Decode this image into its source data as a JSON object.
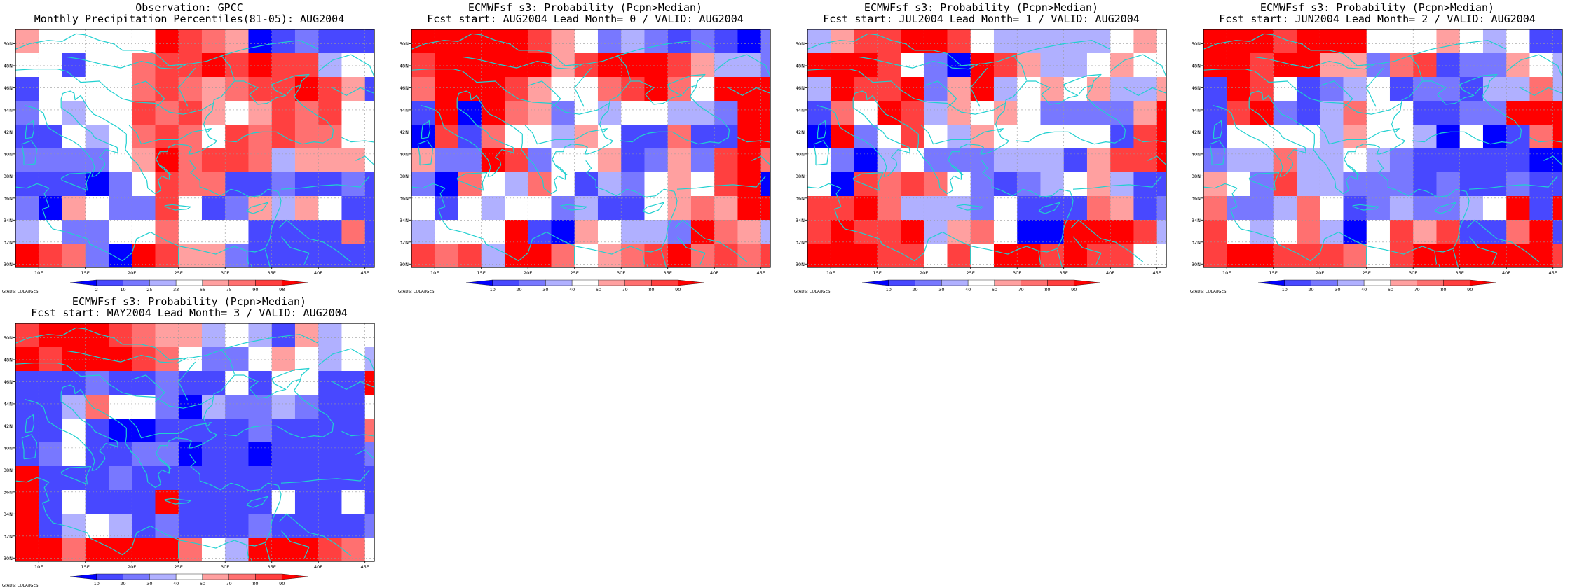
{
  "panels": [
    {
      "id": "obs",
      "title_line1": "Observation: GPCC",
      "title_line2": "Monthly Precipitation Percentiles(81-05): AUG2004",
      "colorbar": {
        "labels": [
          "2",
          "10",
          "25",
          "33",
          "66",
          "75",
          "90",
          "98"
        ],
        "colors": [
          "#0000ff",
          "#4848ff",
          "#7878ff",
          "#b0b0ff",
          "#ffffff",
          "#ffa0a0",
          "#ff7070",
          "#ff4040",
          "#ff0000"
        ]
      },
      "credit": "GrADS: COLA/IGES"
    },
    {
      "id": "lead0",
      "title_line1": "ECMWFsf s3: Probability (Pcpn>Median)",
      "title_line2": "Fcst start: AUG2004  Lead Month= 0 / VALID: AUG2004",
      "colorbar": {
        "labels": [
          "10",
          "20",
          "30",
          "40",
          "60",
          "70",
          "80",
          "90"
        ],
        "colors": [
          "#0000ff",
          "#4848ff",
          "#7878ff",
          "#b0b0ff",
          "#ffffff",
          "#ffa0a0",
          "#ff7070",
          "#ff4040",
          "#ff0000"
        ]
      },
      "credit": "GrADS: COLA/IGES"
    },
    {
      "id": "lead1",
      "title_line1": "ECMWFsf s3: Probability (Pcpn>Median)",
      "title_line2": "Fcst start: JUL2004  Lead Month= 1 / VALID: AUG2004",
      "colorbar": {
        "labels": [
          "10",
          "20",
          "30",
          "40",
          "60",
          "70",
          "80",
          "90"
        ],
        "colors": [
          "#0000ff",
          "#4848ff",
          "#7878ff",
          "#b0b0ff",
          "#ffffff",
          "#ffa0a0",
          "#ff7070",
          "#ff4040",
          "#ff0000"
        ]
      },
      "credit": "GrADS: COLA/IGES"
    },
    {
      "id": "lead2",
      "title_line1": "ECMWFsf s3: Probability (Pcpn>Median)",
      "title_line2": "Fcst start: JUN2004  Lead Month= 2 / VALID: AUG2004",
      "colorbar": {
        "labels": [
          "10",
          "20",
          "30",
          "40",
          "60",
          "70",
          "80",
          "90"
        ],
        "colors": [
          "#0000ff",
          "#4848ff",
          "#7878ff",
          "#b0b0ff",
          "#ffffff",
          "#ffa0a0",
          "#ff7070",
          "#ff4040",
          "#ff0000"
        ]
      },
      "credit": "GrADS: COLA/IGES"
    },
    {
      "id": "lead3",
      "title_line1": "ECMWFsf s3: Probability (Pcpn>Median)",
      "title_line2": "Fcst start: MAY2004  Lead Month= 3 / VALID: AUG2004",
      "colorbar": {
        "labels": [
          "10",
          "20",
          "30",
          "40",
          "60",
          "70",
          "80",
          "90"
        ],
        "colors": [
          "#0000ff",
          "#4848ff",
          "#7878ff",
          "#b0b0ff",
          "#ffffff",
          "#ffa0a0",
          "#ff7070",
          "#ff4040",
          "#ff0000"
        ]
      },
      "credit": "GrADS: COLA/IGES"
    }
  ],
  "map": {
    "lon_labels": [
      "10E",
      "15E",
      "20E",
      "25E",
      "30E",
      "35E",
      "40E",
      "45E"
    ],
    "lat_labels": [
      "30N",
      "32N",
      "34N",
      "36N",
      "38N",
      "40N",
      "42N",
      "44N",
      "46N",
      "48N",
      "50N"
    ],
    "lon_range": [
      7.5,
      46
    ],
    "lat_range": [
      29.7,
      51.3
    ],
    "coastline_color": "#20d0d0",
    "grid_cell_deg": 2.5
  },
  "chart_data": [
    {
      "type": "heatmap",
      "panel": "obs",
      "note": "rows from north (51N) to south (30N); each cell 2.5deg; value = color class index 0..8",
      "cells": [
        [
          5,
          4,
          4,
          4,
          4,
          4,
          8,
          7,
          6,
          5,
          0,
          1,
          2,
          1,
          1,
          1
        ],
        [
          4,
          4,
          1,
          4,
          4,
          6,
          7,
          7,
          8,
          7,
          8,
          7,
          7,
          3,
          4,
          4
        ],
        [
          1,
          4,
          4,
          4,
          4,
          6,
          7,
          6,
          5,
          6,
          7,
          7,
          8,
          7,
          5,
          1
        ],
        [
          2,
          4,
          3,
          4,
          4,
          7,
          6,
          7,
          5,
          4,
          5,
          7,
          6,
          7,
          4,
          4
        ],
        [
          1,
          1,
          4,
          3,
          4,
          6,
          7,
          6,
          4,
          7,
          6,
          7,
          6,
          6,
          4,
          4
        ],
        [
          2,
          2,
          2,
          2,
          4,
          5,
          8,
          6,
          7,
          7,
          6,
          3,
          5,
          5,
          5,
          4
        ],
        [
          1,
          1,
          1,
          0,
          2,
          4,
          7,
          6,
          6,
          1,
          1,
          2,
          1,
          1,
          2,
          1
        ],
        [
          2,
          0,
          5,
          4,
          2,
          2,
          7,
          4,
          1,
          2,
          5,
          3,
          5,
          4,
          1,
          1
        ],
        [
          3,
          4,
          2,
          2,
          4,
          4,
          6,
          4,
          4,
          4,
          1,
          1,
          1,
          1,
          6,
          1
        ],
        [
          8,
          7,
          6,
          2,
          0,
          8,
          7,
          5,
          5,
          2,
          1,
          1,
          1,
          1,
          1,
          1
        ]
      ]
    },
    {
      "type": "heatmap",
      "panel": "lead0",
      "cells": [
        [
          8,
          8,
          8,
          8,
          8,
          7,
          5,
          4,
          2,
          3,
          2,
          1,
          2,
          1,
          0,
          2
        ],
        [
          7,
          8,
          8,
          8,
          8,
          8,
          5,
          7,
          8,
          8,
          8,
          7,
          5,
          3,
          3,
          2
        ],
        [
          6,
          8,
          8,
          8,
          7,
          5,
          4,
          4,
          6,
          7,
          8,
          6,
          4,
          8,
          8,
          8
        ],
        [
          1,
          8,
          0,
          8,
          6,
          5,
          2,
          4,
          3,
          4,
          4,
          3,
          3,
          2,
          8,
          8
        ],
        [
          0,
          7,
          1,
          6,
          4,
          4,
          3,
          5,
          4,
          1,
          1,
          6,
          1,
          1,
          8,
          8
        ],
        [
          5,
          2,
          2,
          8,
          7,
          2,
          4,
          4,
          5,
          1,
          2,
          5,
          2,
          7,
          8,
          6
        ],
        [
          2,
          0,
          6,
          4,
          3,
          6,
          4,
          1,
          3,
          2,
          4,
          5,
          4,
          7,
          8,
          0
        ],
        [
          4,
          1,
          4,
          3,
          4,
          4,
          2,
          3,
          1,
          1,
          4,
          5,
          6,
          5,
          8,
          8
        ],
        [
          3,
          4,
          4,
          4,
          8,
          1,
          0,
          5,
          4,
          3,
          3,
          2,
          8,
          6,
          5,
          3
        ],
        [
          7,
          6,
          7,
          3,
          8,
          8,
          6,
          4,
          5,
          6,
          7,
          8,
          6,
          7,
          6,
          7
        ]
      ]
    },
    {
      "type": "heatmap",
      "panel": "lead1",
      "cells": [
        [
          3,
          5,
          7,
          7,
          8,
          8,
          7,
          4,
          3,
          3,
          3,
          3,
          3,
          4,
          5,
          4
        ],
        [
          8,
          8,
          8,
          7,
          4,
          2,
          0,
          8,
          7,
          5,
          3,
          3,
          4,
          5,
          4,
          4
        ],
        [
          3,
          8,
          7,
          7,
          8,
          2,
          5,
          8,
          3,
          4,
          5,
          4,
          5,
          3,
          3,
          5
        ],
        [
          1,
          6,
          4,
          8,
          7,
          3,
          5,
          4,
          5,
          4,
          2,
          2,
          2,
          2,
          5,
          8
        ],
        [
          0,
          8,
          2,
          4,
          7,
          4,
          3,
          5,
          4,
          4,
          4,
          4,
          4,
          1,
          7,
          8
        ],
        [
          4,
          2,
          0,
          3,
          4,
          2,
          2,
          2,
          3,
          3,
          3,
          1,
          5,
          7,
          7,
          8
        ],
        [
          4,
          0,
          7,
          6,
          7,
          6,
          4,
          2,
          1,
          2,
          3,
          4,
          5,
          3,
          1,
          1
        ],
        [
          7,
          7,
          8,
          6,
          3,
          3,
          3,
          2,
          4,
          1,
          1,
          1,
          6,
          5,
          1,
          2
        ],
        [
          7,
          8,
          7,
          7,
          8,
          3,
          5,
          6,
          4,
          0,
          0,
          8,
          8,
          8,
          7,
          3
        ],
        [
          8,
          8,
          8,
          7,
          7,
          4,
          7,
          4,
          8,
          8,
          7,
          8,
          7,
          7,
          4,
          4
        ]
      ]
    },
    {
      "type": "heatmap",
      "panel": "lead2",
      "cells": [
        [
          8,
          8,
          8,
          7,
          8,
          8,
          8,
          4,
          4,
          4,
          5,
          4,
          3,
          4,
          1,
          1
        ],
        [
          8,
          8,
          7,
          8,
          8,
          5,
          5,
          2,
          6,
          7,
          1,
          2,
          2,
          5,
          4,
          3
        ],
        [
          1,
          8,
          7,
          4,
          1,
          2,
          3,
          4,
          1,
          2,
          2,
          1,
          3,
          3,
          6,
          3
        ],
        [
          1,
          7,
          8,
          2,
          1,
          3,
          6,
          4,
          4,
          1,
          1,
          2,
          2,
          8,
          8,
          8
        ],
        [
          1,
          4,
          4,
          4,
          4,
          3,
          5,
          4,
          4,
          3,
          0,
          4,
          0,
          1,
          6,
          8
        ],
        [
          2,
          3,
          3,
          6,
          3,
          3,
          4,
          3,
          2,
          1,
          1,
          1,
          1,
          1,
          0,
          0
        ],
        [
          5,
          4,
          2,
          7,
          3,
          3,
          2,
          2,
          2,
          1,
          2,
          1,
          1,
          2,
          1,
          1
        ],
        [
          6,
          2,
          2,
          3,
          6,
          4,
          1,
          2,
          3,
          2,
          2,
          3,
          4,
          8,
          1,
          8
        ],
        [
          7,
          4,
          3,
          4,
          6,
          3,
          0,
          4,
          7,
          5,
          7,
          1,
          1,
          6,
          8,
          1
        ],
        [
          7,
          8,
          8,
          7,
          7,
          7,
          6,
          4,
          7,
          8,
          8,
          8,
          8,
          8,
          8,
          7
        ]
      ]
    },
    {
      "type": "heatmap",
      "panel": "lead3",
      "cells": [
        [
          7,
          8,
          8,
          8,
          7,
          6,
          5,
          5,
          3,
          4,
          3,
          1,
          5,
          3,
          4,
          4
        ],
        [
          8,
          7,
          8,
          8,
          8,
          7,
          6,
          4,
          2,
          2,
          4,
          5,
          4,
          3,
          4,
          3
        ],
        [
          1,
          1,
          1,
          2,
          1,
          1,
          2,
          1,
          1,
          4,
          1,
          4,
          4,
          1,
          1,
          8
        ],
        [
          1,
          1,
          3,
          6,
          4,
          4,
          2,
          0,
          3,
          2,
          2,
          3,
          2,
          1,
          1,
          4
        ],
        [
          1,
          1,
          4,
          1,
          0,
          0,
          1,
          1,
          1,
          1,
          2,
          1,
          1,
          1,
          1,
          6
        ],
        [
          1,
          2,
          4,
          1,
          1,
          2,
          2,
          0,
          1,
          1,
          0,
          1,
          1,
          1,
          1,
          2
        ],
        [
          8,
          1,
          1,
          1,
          2,
          1,
          1,
          1,
          1,
          1,
          1,
          1,
          1,
          1,
          1,
          1
        ],
        [
          8,
          1,
          4,
          1,
          1,
          1,
          8,
          1,
          1,
          1,
          1,
          4,
          1,
          1,
          4,
          1
        ],
        [
          8,
          1,
          3,
          4,
          3,
          1,
          2,
          1,
          1,
          1,
          2,
          1,
          1,
          1,
          1,
          2
        ],
        [
          8,
          8,
          6,
          8,
          8,
          8,
          8,
          6,
          4,
          3,
          8,
          8,
          8,
          7,
          6,
          4
        ]
      ]
    }
  ]
}
